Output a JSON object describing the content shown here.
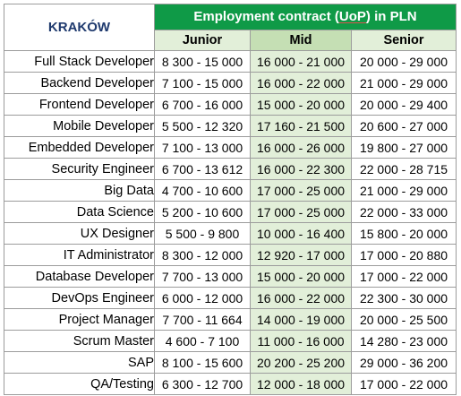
{
  "table": {
    "city": "KRAKÓW",
    "contract_prefix": "Employment contract (",
    "contract_uop": "UoP",
    "contract_suffix": ") in PLN",
    "levels": [
      "Junior",
      "Mid",
      "Senior"
    ],
    "colors": {
      "header_green": "#0f9a47",
      "mid_light_green": "#c5dfb4",
      "light_green": "#e2efd9",
      "city_text": "#1f3a6e"
    },
    "rows": [
      {
        "role": "Full Stack Developer",
        "junior": "8 300 - 15 000",
        "mid": "16 000 - 21 000",
        "senior": "20 000 - 29 000"
      },
      {
        "role": "Backend Developer",
        "junior": "7 100 - 15 000",
        "mid": "16 000 - 22 000",
        "senior": "21 000 - 29 000"
      },
      {
        "role": "Frontend Developer",
        "junior": "6 700 - 16 000",
        "mid": "15 000 - 20 000",
        "senior": "20 000 - 29 400"
      },
      {
        "role": "Mobile Developer",
        "junior": "5 500 - 12 320",
        "mid": "17 160 - 21 500",
        "senior": "20 600 - 27 000"
      },
      {
        "role": "Embedded Developer",
        "junior": "7 100 - 13 000",
        "mid": "16 000 - 26 000",
        "senior": "19 800 - 27 000"
      },
      {
        "role": "Security Engineer",
        "junior": "6 700 - 13 612",
        "mid": "16 000 - 22 300",
        "senior": "22 000 - 28 715"
      },
      {
        "role": "Big Data",
        "junior": "4 700 - 10 600",
        "mid": "17 000 - 25 000",
        "senior": "21 000 - 29 000"
      },
      {
        "role": "Data Science",
        "junior": "5 200 - 10 600",
        "mid": "17 000 - 25 000",
        "senior": "22 000 - 33 000"
      },
      {
        "role": "UX Designer",
        "junior": "5 500 - 9 800",
        "mid": "10 000 - 16 400",
        "senior": "15 800 - 20 000"
      },
      {
        "role": "IT Administrator",
        "junior": "8 300 - 12 000",
        "mid": "12 920 - 17 000",
        "senior": "17 000 - 20 880"
      },
      {
        "role": "Database Developer",
        "junior": "7 700 - 13 000",
        "mid": "15 000 - 20 000",
        "senior": "17 000 - 22 000"
      },
      {
        "role": "DevOps Engineer",
        "junior": "6 000 - 12 000",
        "mid": "16 000 - 22 000",
        "senior": "22 300 - 30 000"
      },
      {
        "role": "Project Manager",
        "junior": "7 700 - 11 664",
        "mid": "14 000 - 19 000",
        "senior": "20 000 - 25 500"
      },
      {
        "role": "Scrum Master",
        "junior": "4 600 - 7 100",
        "mid": "11 000 - 16 000",
        "senior": "14 280 - 23 000"
      },
      {
        "role": "SAP",
        "junior": "8 100 - 15 600",
        "mid": "20 200 - 25 200",
        "senior": "29 000 - 36 200"
      },
      {
        "role": "QA/Testing",
        "junior": "6 300 - 12 700",
        "mid": "12 000 - 18 000",
        "senior": "17 000 - 22 000"
      }
    ]
  }
}
